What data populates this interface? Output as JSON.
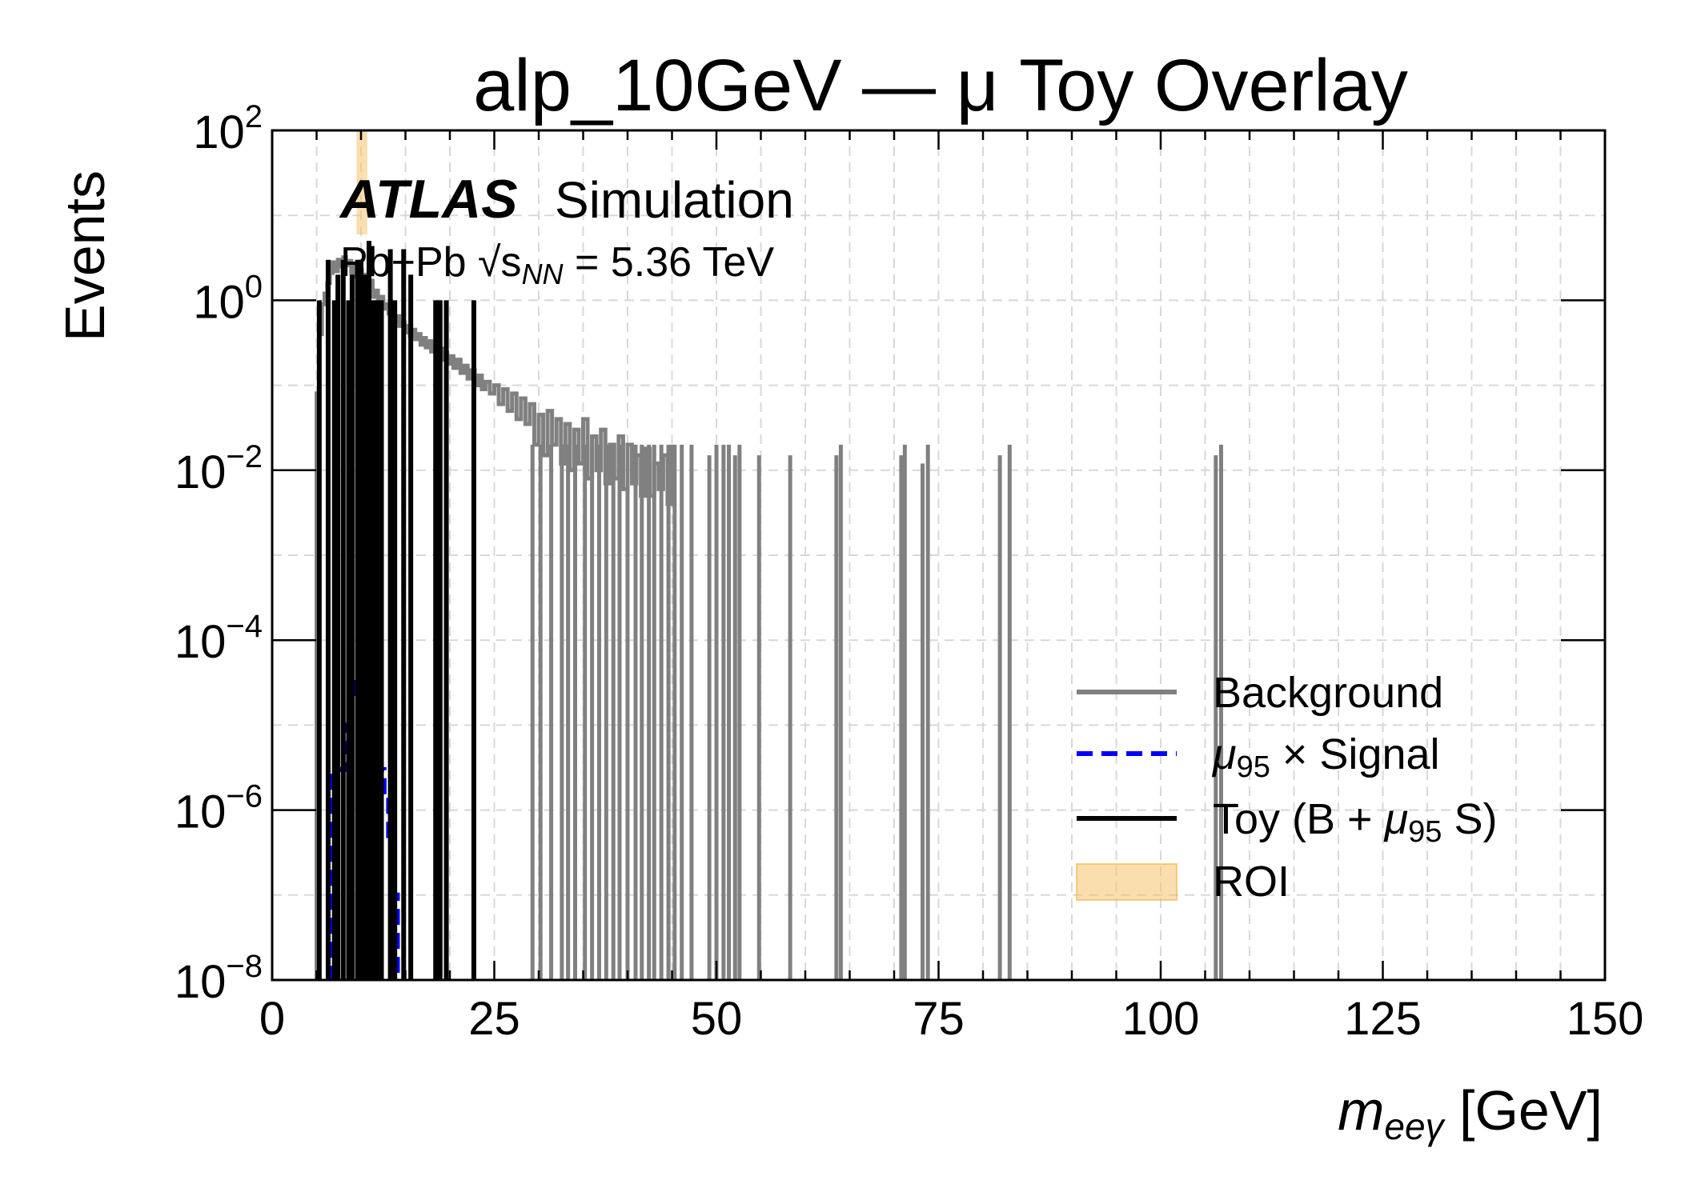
{
  "chart_data": {
    "type": "line",
    "title": "alp_10GeV — μ   Toy Overlay",
    "xlabel": {
      "main": "m",
      "sub": "eeγ",
      "unit": " [GeV]"
    },
    "ylabel": "Events",
    "yscale": "log",
    "xlim": [
      0,
      150
    ],
    "ylim": [
      1e-08,
      100
    ],
    "grid": true,
    "legend_position": "lower-right",
    "x_ticks": [
      "0",
      "25",
      "50",
      "75",
      "100",
      "125",
      "150"
    ],
    "y_ticks": [
      {
        "base": "10",
        "exp": "2"
      },
      {
        "base": "10",
        "exp": "0"
      },
      {
        "base": "10",
        "exp": "−2"
      },
      {
        "base": "10",
        "exp": "−4"
      },
      {
        "base": "10",
        "exp": "−6"
      },
      {
        "base": "10",
        "exp": "−8"
      }
    ],
    "experiment": {
      "name": "ATLAS",
      "tag": "Simulation",
      "energy_text": "Pb+Pb √s",
      "energy_sub": "NN",
      "energy_value": " = 5.36 TeV"
    },
    "roi": {
      "x_min": 9.5,
      "x_max": 10.7
    },
    "series": [
      {
        "name": "Background",
        "color": "#808080",
        "style": "solid",
        "points": [
          [
            5.0,
            0.08
          ],
          [
            5.3,
            0.4
          ],
          [
            5.6,
            0.9
          ],
          [
            5.9,
            1.2
          ],
          [
            6.2,
            1.6
          ],
          [
            6.5,
            2.1
          ],
          [
            6.8,
            2.8
          ],
          [
            7.1,
            2.2
          ],
          [
            7.4,
            3.0
          ],
          [
            7.7,
            2.5
          ],
          [
            8.0,
            3.2
          ],
          [
            8.3,
            2.6
          ],
          [
            8.6,
            2.9
          ],
          [
            8.9,
            2.1
          ],
          [
            9.2,
            2.7
          ],
          [
            9.5,
            1.9
          ],
          [
            9.8,
            2.3
          ],
          [
            10.1,
            1.6
          ],
          [
            10.4,
            2.0
          ],
          [
            10.7,
            1.4
          ],
          [
            11.0,
            1.7
          ],
          [
            11.3,
            1.1
          ],
          [
            11.6,
            1.3
          ],
          [
            11.9,
            0.95
          ],
          [
            12.2,
            1.1
          ],
          [
            12.5,
            0.8
          ],
          [
            12.8,
            0.9
          ],
          [
            13.1,
            0.7
          ],
          [
            13.4,
            0.75
          ],
          [
            13.7,
            0.55
          ],
          [
            14.0,
            0.65
          ],
          [
            14.3,
            0.5
          ],
          [
            14.6,
            0.55
          ],
          [
            14.9,
            0.42
          ],
          [
            15.2,
            0.5
          ],
          [
            15.5,
            0.38
          ],
          [
            15.8,
            0.45
          ],
          [
            16.1,
            0.35
          ],
          [
            16.4,
            0.4
          ],
          [
            16.7,
            0.3
          ],
          [
            17.0,
            0.36
          ],
          [
            17.3,
            0.28
          ],
          [
            17.6,
            0.33
          ],
          [
            17.9,
            0.25
          ],
          [
            18.2,
            0.3
          ],
          [
            18.5,
            0.22
          ],
          [
            18.8,
            0.27
          ],
          [
            19.1,
            0.2
          ],
          [
            19.4,
            0.24
          ],
          [
            19.7,
            0.18
          ],
          [
            20.0,
            0.22
          ],
          [
            20.4,
            0.16
          ],
          [
            20.8,
            0.2
          ],
          [
            21.2,
            0.14
          ],
          [
            21.6,
            0.17
          ],
          [
            22.0,
            0.12
          ],
          [
            22.4,
            0.15
          ],
          [
            22.8,
            0.1
          ],
          [
            23.2,
            0.13
          ],
          [
            23.6,
            0.09
          ],
          [
            24.0,
            0.11
          ],
          [
            24.5,
            0.08
          ],
          [
            25.0,
            0.1
          ],
          [
            25.5,
            0.06
          ],
          [
            26.0,
            0.09
          ],
          [
            26.5,
            0.05
          ],
          [
            27.0,
            0.08
          ],
          [
            27.5,
            0.04
          ],
          [
            28.0,
            0.07
          ],
          [
            28.5,
            0.035
          ],
          [
            29.0,
            0.06
          ],
          [
            29.5,
            0.02
          ],
          [
            30.0,
            0.045
          ],
          [
            30.5,
            0.015
          ],
          [
            31.0,
            0.05
          ],
          [
            31.5,
            0.02
          ],
          [
            32.0,
            0.04
          ],
          [
            32.5,
            0.012
          ],
          [
            33.0,
            0.035
          ],
          [
            33.5,
            0.01
          ],
          [
            34.0,
            0.03
          ],
          [
            34.5,
            0.012
          ],
          [
            35.0,
            0.04
          ],
          [
            35.5,
            0.008
          ],
          [
            36.0,
            0.025
          ],
          [
            36.5,
            0.01
          ],
          [
            37.0,
            0.03
          ],
          [
            37.5,
            0.007
          ],
          [
            38.0,
            0.02
          ],
          [
            38.5,
            0.008
          ],
          [
            39.0,
            0.025
          ],
          [
            39.5,
            0.006
          ],
          [
            40.0,
            0.02
          ],
          [
            40.5,
            0.007
          ],
          [
            41.0,
            0.015
          ],
          [
            41.5,
            0.005
          ],
          [
            42.0,
            0.018
          ],
          [
            42.5,
            0.005
          ],
          [
            43.0,
            0.012
          ],
          [
            43.5,
            0.006
          ],
          [
            44.0,
            0.015
          ],
          [
            44.5,
            0.004
          ],
          [
            45.0,
            0.02
          ]
        ],
        "spikes": [
          [
            29.3,
            1e-08
          ],
          [
            30.2,
            1e-08
          ],
          [
            31.4,
            1e-08
          ],
          [
            32.6,
            1e-08
          ],
          [
            33.3,
            1e-08
          ],
          [
            34.1,
            1e-08
          ],
          [
            35.2,
            1e-08
          ],
          [
            36.0,
            1e-08
          ],
          [
            36.8,
            1e-08
          ],
          [
            37.6,
            1e-08
          ],
          [
            38.4,
            1e-08
          ],
          [
            39.1,
            1e-08
          ],
          [
            40.0,
            1e-08
          ],
          [
            40.9,
            1e-08
          ],
          [
            41.6,
            1e-08
          ],
          [
            42.4,
            1e-08
          ],
          [
            43.0,
            1e-08
          ],
          [
            43.8,
            1e-08
          ],
          [
            44.6,
            1e-08
          ],
          [
            45.3,
            1e-08
          ],
          [
            46.1,
            0.02
          ],
          [
            47.2,
            1e-08
          ],
          [
            49.2,
            0.015
          ],
          [
            50.0,
            1e-08
          ],
          [
            50.8,
            0.02
          ],
          [
            51.4,
            1e-08
          ],
          [
            52.1,
            0.015
          ],
          [
            52.6,
            1e-08
          ],
          [
            54.8,
            0.015
          ],
          [
            58.3,
            0.015
          ],
          [
            63.5,
            0.015
          ],
          [
            64.0,
            1e-08
          ],
          [
            70.8,
            0.015
          ],
          [
            71.2,
            1e-08
          ],
          [
            73.2,
            0.012
          ],
          [
            73.8,
            1e-08
          ],
          [
            81.9,
            0.015
          ],
          [
            83.0,
            1e-08
          ],
          [
            106.2,
            0.015
          ],
          [
            106.8,
            1e-08
          ]
        ]
      },
      {
        "name": "μ₉₅ × Signal",
        "legend_parts": {
          "mu": "μ",
          "sub": "95",
          "rest": " ×  Signal"
        },
        "color": "#0000ff",
        "style": "dashed",
        "points": [
          [
            6.6,
            1e-08
          ],
          [
            6.8,
            3e-06
          ],
          [
            7.2,
            3e-06
          ],
          [
            7.6,
            3e-06
          ],
          [
            8.2,
            5e-06
          ],
          [
            8.5,
            1e-05
          ],
          [
            8.9,
            4e-05
          ],
          [
            9.3,
            2e-05
          ],
          [
            9.7,
            1e-05
          ],
          [
            10.1,
            8e-06
          ],
          [
            10.5,
            6e-06
          ],
          [
            10.9,
            4e-06
          ],
          [
            11.3,
            5e-06
          ],
          [
            11.6,
            4e-06
          ],
          [
            12.0,
            3e-06
          ],
          [
            12.6,
            1.5e-06
          ],
          [
            13.1,
            5e-07
          ],
          [
            13.6,
            1e-07
          ],
          [
            14.1,
            1e-08
          ]
        ]
      },
      {
        "name": "Toy (B + μ₉₅ S)",
        "legend_parts": {
          "pre": "Toy (B + ",
          "mu": "μ",
          "sub": "95",
          "post": " S)"
        },
        "color": "#000000",
        "style": "solid",
        "spikes": [
          [
            5.3,
            1
          ],
          [
            6.3,
            3
          ],
          [
            7.0,
            1
          ],
          [
            7.4,
            2
          ],
          [
            8.0,
            3
          ],
          [
            8.6,
            1
          ],
          [
            9.0,
            2
          ],
          [
            9.6,
            3
          ],
          [
            10.0,
            3
          ],
          [
            10.4,
            2
          ],
          [
            10.9,
            5
          ],
          [
            11.4,
            1
          ],
          [
            11.9,
            1
          ],
          [
            12.3,
            1
          ],
          [
            13.3,
            4
          ],
          [
            13.8,
            1
          ],
          [
            14.8,
            4
          ],
          [
            15.6,
            2
          ],
          [
            18.4,
            1
          ],
          [
            18.9,
            1
          ],
          [
            19.6,
            1
          ],
          [
            22.7,
            1
          ]
        ]
      }
    ]
  }
}
